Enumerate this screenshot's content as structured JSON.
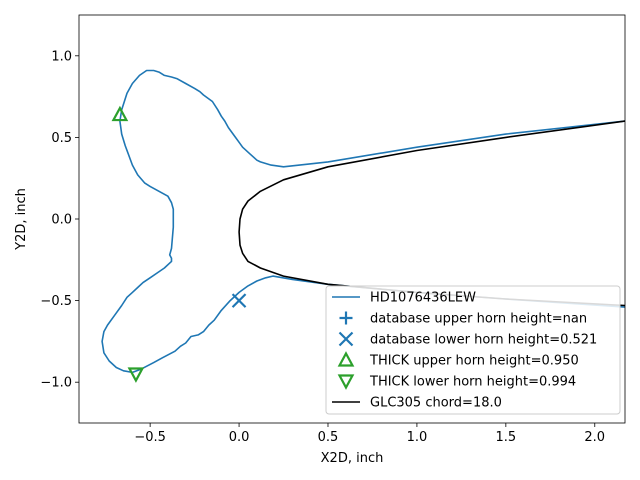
{
  "chart_data": {
    "type": "line",
    "xlabel": "X2D, inch",
    "ylabel": "Y2D, inch",
    "xlim": [
      -0.9,
      2.17
    ],
    "ylim": [
      -1.25,
      1.25
    ],
    "xticks": [
      -0.5,
      0.0,
      0.5,
      1.0,
      1.5,
      2.0
    ],
    "xtick_labels": [
      "−0.5",
      "0.0",
      "0.5",
      "1.0",
      "1.5",
      "2.0"
    ],
    "yticks": [
      -1.0,
      -0.5,
      0.0,
      0.5,
      1.0
    ],
    "ytick_labels": [
      "−1.0",
      "−0.5",
      "0.0",
      "0.5",
      "1.0"
    ],
    "grid": false,
    "legend_position": "lower right",
    "series": [
      {
        "name": "HD1076436LEW",
        "kind": "line",
        "color": "#1f77b4",
        "x": [
          2.17,
          1.5,
          1.0,
          0.5,
          0.25,
          0.18,
          0.12,
          0.1,
          0.06,
          0.02,
          0.0,
          -0.02,
          -0.06,
          -0.08,
          -0.1,
          -0.12,
          -0.15,
          -0.2,
          -0.22,
          -0.25,
          -0.3,
          -0.35,
          -0.38,
          -0.42,
          -0.45,
          -0.48,
          -0.52,
          -0.56,
          -0.6,
          -0.63,
          -0.66,
          -0.67,
          -0.66,
          -0.64,
          -0.6,
          -0.57,
          -0.53,
          -0.5,
          -0.45,
          -0.4,
          -0.38,
          -0.37,
          -0.37,
          -0.38,
          -0.39,
          -0.38,
          -0.38,
          -0.39,
          -0.42,
          -0.46,
          -0.5,
          -0.54,
          -0.57,
          -0.6,
          -0.63,
          -0.66,
          -0.7,
          -0.74,
          -0.76,
          -0.77,
          -0.76,
          -0.73,
          -0.69,
          -0.65,
          -0.6,
          -0.55,
          -0.48,
          -0.43,
          -0.36,
          -0.33,
          -0.3,
          -0.27,
          -0.23,
          -0.2,
          -0.17,
          -0.14,
          -0.1,
          -0.05,
          0.0,
          0.05,
          0.1,
          0.15,
          0.19,
          0.3,
          0.5,
          1.0,
          1.5,
          2.17
        ],
        "y": [
          0.6,
          0.52,
          0.44,
          0.35,
          0.32,
          0.33,
          0.35,
          0.36,
          0.4,
          0.44,
          0.47,
          0.5,
          0.56,
          0.6,
          0.63,
          0.67,
          0.72,
          0.76,
          0.78,
          0.8,
          0.83,
          0.86,
          0.87,
          0.88,
          0.9,
          0.91,
          0.91,
          0.88,
          0.83,
          0.77,
          0.67,
          0.6,
          0.52,
          0.45,
          0.33,
          0.27,
          0.22,
          0.2,
          0.17,
          0.14,
          0.1,
          0.06,
          -0.05,
          -0.18,
          -0.22,
          -0.24,
          -0.26,
          -0.27,
          -0.3,
          -0.33,
          -0.36,
          -0.39,
          -0.42,
          -0.45,
          -0.48,
          -0.53,
          -0.59,
          -0.65,
          -0.69,
          -0.75,
          -0.82,
          -0.87,
          -0.91,
          -0.93,
          -0.94,
          -0.92,
          -0.88,
          -0.85,
          -0.81,
          -0.78,
          -0.76,
          -0.72,
          -0.71,
          -0.69,
          -0.65,
          -0.62,
          -0.56,
          -0.5,
          -0.45,
          -0.41,
          -0.38,
          -0.36,
          -0.35,
          -0.37,
          -0.4,
          -0.45,
          -0.49,
          -0.54
        ]
      },
      {
        "name": "database upper horn height=nan",
        "kind": "marker",
        "marker": "plus",
        "color": "#1f77b4",
        "x": [],
        "y": []
      },
      {
        "name": "database lower horn height=0.521",
        "kind": "marker",
        "marker": "x",
        "color": "#1f77b4",
        "x": [
          0.0
        ],
        "y": [
          -0.5
        ]
      },
      {
        "name": "THICK upper horn height=0.950",
        "kind": "marker",
        "marker": "triangle-up",
        "color": "#2ca02c",
        "x": [
          -0.67
        ],
        "y": [
          0.64
        ]
      },
      {
        "name": "THICK lower horn height=0.994",
        "kind": "marker",
        "marker": "triangle-down",
        "color": "#2ca02c",
        "x": [
          -0.58
        ],
        "y": [
          -0.95
        ]
      },
      {
        "name": "GLC305 chord=18.0",
        "kind": "line",
        "color": "#000000",
        "x": [
          2.17,
          1.5,
          1.0,
          0.5,
          0.25,
          0.12,
          0.05,
          0.02,
          0.005,
          0.0,
          0.005,
          0.02,
          0.05,
          0.12,
          0.25,
          0.5,
          1.0,
          1.5,
          2.17
        ],
        "y": [
          0.6,
          0.5,
          0.42,
          0.32,
          0.24,
          0.17,
          0.11,
          0.06,
          0.0,
          -0.08,
          -0.16,
          -0.21,
          -0.26,
          -0.3,
          -0.35,
          -0.4,
          -0.45,
          -0.49,
          -0.53
        ]
      }
    ]
  }
}
